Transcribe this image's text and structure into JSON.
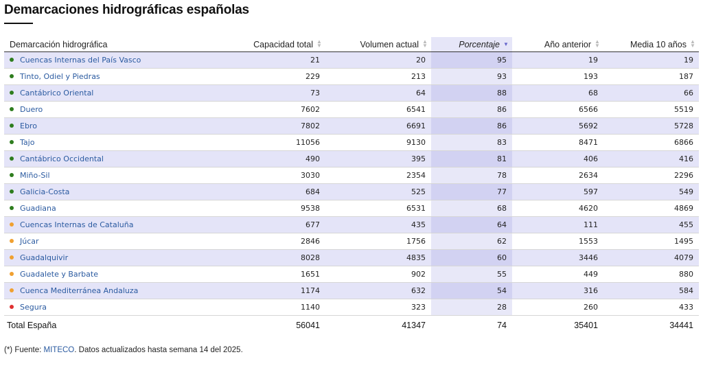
{
  "title": "Demarcaciones hidrográficas españolas",
  "columns": [
    {
      "label": "Demarcación hidrográfica"
    },
    {
      "label": "Capacidad total"
    },
    {
      "label": "Volumen actual"
    },
    {
      "label": "Porcentaje"
    },
    {
      "label": "Año anterior"
    },
    {
      "label": "Media 10 años"
    }
  ],
  "status_colors": {
    "green": "#2e7d1e",
    "orange": "#f0a030",
    "red": "#e03030"
  },
  "rows": [
    {
      "name": "Cuencas Internas del País Vasco",
      "status": "green",
      "capacidad": "21",
      "volumen": "20",
      "porcentaje": "95",
      "anterior": "19",
      "media": "19"
    },
    {
      "name": "Tinto, Odiel y Piedras",
      "status": "green",
      "capacidad": "229",
      "volumen": "213",
      "porcentaje": "93",
      "anterior": "193",
      "media": "187"
    },
    {
      "name": "Cantábrico Oriental",
      "status": "green",
      "capacidad": "73",
      "volumen": "64",
      "porcentaje": "88",
      "anterior": "68",
      "media": "66"
    },
    {
      "name": "Duero",
      "status": "green",
      "capacidad": "7602",
      "volumen": "6541",
      "porcentaje": "86",
      "anterior": "6566",
      "media": "5519"
    },
    {
      "name": "Ebro",
      "status": "green",
      "capacidad": "7802",
      "volumen": "6691",
      "porcentaje": "86",
      "anterior": "5692",
      "media": "5728"
    },
    {
      "name": "Tajo",
      "status": "green",
      "capacidad": "11056",
      "volumen": "9130",
      "porcentaje": "83",
      "anterior": "8471",
      "media": "6866"
    },
    {
      "name": "Cantábrico Occidental",
      "status": "green",
      "capacidad": "490",
      "volumen": "395",
      "porcentaje": "81",
      "anterior": "406",
      "media": "416"
    },
    {
      "name": "Miño-Sil",
      "status": "green",
      "capacidad": "3030",
      "volumen": "2354",
      "porcentaje": "78",
      "anterior": "2634",
      "media": "2296"
    },
    {
      "name": "Galicia-Costa",
      "status": "green",
      "capacidad": "684",
      "volumen": "525",
      "porcentaje": "77",
      "anterior": "597",
      "media": "549"
    },
    {
      "name": "Guadiana",
      "status": "green",
      "capacidad": "9538",
      "volumen": "6531",
      "porcentaje": "68",
      "anterior": "4620",
      "media": "4869"
    },
    {
      "name": "Cuencas Internas de Cataluña",
      "status": "orange",
      "capacidad": "677",
      "volumen": "435",
      "porcentaje": "64",
      "anterior": "111",
      "media": "455"
    },
    {
      "name": "Júcar",
      "status": "orange",
      "capacidad": "2846",
      "volumen": "1756",
      "porcentaje": "62",
      "anterior": "1553",
      "media": "1495"
    },
    {
      "name": "Guadalquivir",
      "status": "orange",
      "capacidad": "8028",
      "volumen": "4835",
      "porcentaje": "60",
      "anterior": "3446",
      "media": "4079"
    },
    {
      "name": "Guadalete y Barbate",
      "status": "orange",
      "capacidad": "1651",
      "volumen": "902",
      "porcentaje": "55",
      "anterior": "449",
      "media": "880"
    },
    {
      "name": "Cuenca Mediterránea Andaluza",
      "status": "orange",
      "capacidad": "1174",
      "volumen": "632",
      "porcentaje": "54",
      "anterior": "316",
      "media": "584"
    },
    {
      "name": "Segura",
      "status": "red",
      "capacidad": "1140",
      "volumen": "323",
      "porcentaje": "28",
      "anterior": "260",
      "media": "433"
    }
  ],
  "total": {
    "name": "Total España",
    "capacidad": "56041",
    "volumen": "41347",
    "porcentaje": "74",
    "anterior": "35401",
    "media": "34441"
  },
  "footnote": {
    "prefix": "(*) Fuente: ",
    "link": "MITECO",
    "suffix": ". Datos actualizados hasta semana 14 del 2025."
  }
}
